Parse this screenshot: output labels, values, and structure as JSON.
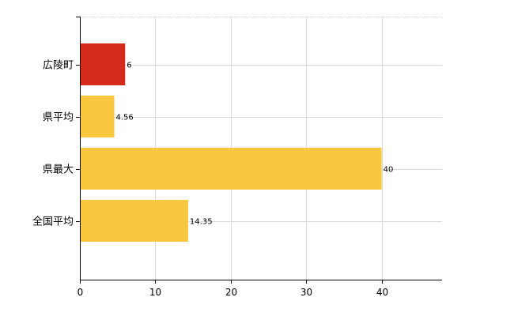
{
  "chart_data": {
    "type": "bar",
    "orientation": "horizontal",
    "categories": [
      "広陵町",
      "県平均",
      "県最大",
      "全国平均"
    ],
    "values": [
      6,
      4.56,
      40,
      14.35
    ],
    "value_labels": [
      "6",
      "4.56",
      "40",
      "14.35"
    ],
    "bar_colors": [
      "#D42A1B",
      "#F9C83E",
      "#F9C83E",
      "#F9C83E"
    ],
    "xlim": [
      0,
      48
    ],
    "x_ticks": [
      0,
      10,
      20,
      30,
      40
    ],
    "x_tick_labels": [
      "0",
      "10",
      "20",
      "30",
      "40"
    ],
    "grid": true,
    "legend": "none"
  }
}
